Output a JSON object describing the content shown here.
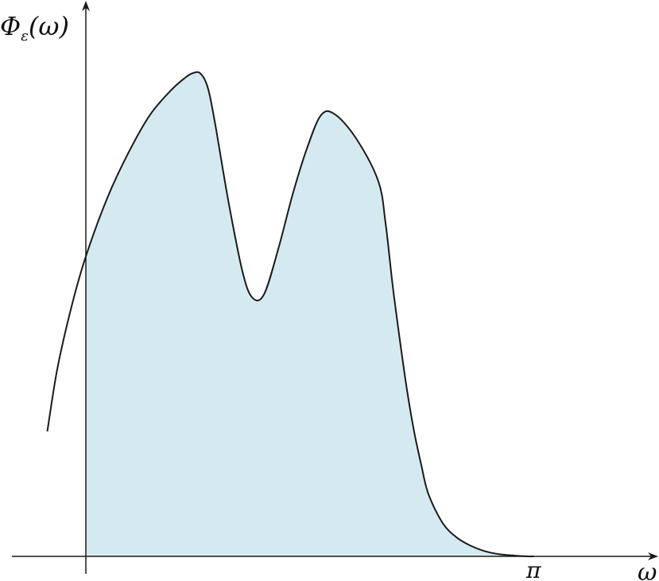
{
  "chart_data": {
    "type": "area",
    "ylabel": {
      "main": "Φ",
      "subscript": "ε",
      "argument": "(ω)"
    },
    "xlabel": "ω",
    "x_tick_labels": [
      "π"
    ],
    "curve": {
      "x": [
        -0.27,
        -0.2,
        -0.1,
        0.0,
        0.15,
        0.3,
        0.45,
        0.6,
        0.7,
        0.75,
        0.8,
        0.85,
        0.9,
        1.0,
        1.1,
        1.17,
        1.25,
        1.35,
        1.45,
        1.55,
        1.65,
        1.75,
        1.9,
        2.05,
        2.1,
        2.15,
        2.2,
        2.25,
        2.3,
        2.35,
        2.4,
        2.5,
        2.6,
        2.7,
        2.8,
        2.9,
        3.0,
        3.1,
        3.14
      ],
      "y": [
        0.3,
        0.45,
        0.6,
        0.72,
        0.86,
        0.97,
        1.06,
        1.12,
        1.15,
        1.16,
        1.16,
        1.13,
        1.05,
        0.85,
        0.68,
        0.62,
        0.63,
        0.74,
        0.87,
        0.98,
        1.06,
        1.06,
        1.0,
        0.9,
        0.8,
        0.65,
        0.52,
        0.4,
        0.3,
        0.22,
        0.15,
        0.08,
        0.045,
        0.025,
        0.012,
        0.005,
        0.002,
        0.0,
        0.0
      ]
    },
    "shaded_region": {
      "from": 0,
      "to": 3.14
    },
    "xlim": [
      -0.52,
      4.0
    ],
    "ylim": [
      0,
      1.3
    ],
    "grid": false,
    "colors": {
      "fill": "#d5eaf0",
      "curve": "#1a1a1a",
      "axes": "#1a1a1a"
    }
  }
}
